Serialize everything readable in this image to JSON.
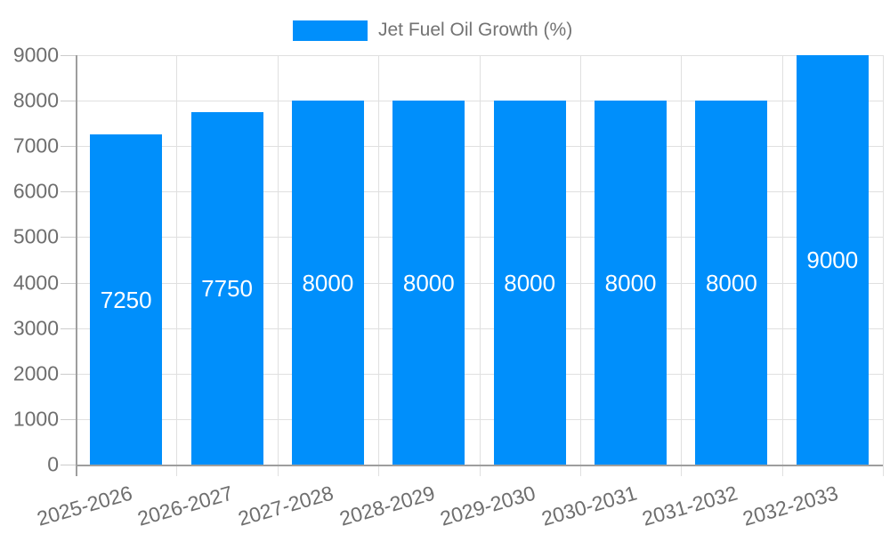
{
  "chart_data": {
    "type": "bar",
    "title": "Jet Fuel Oil Growth (%)",
    "legend": {
      "label": "Jet Fuel Oil Growth (%)",
      "position": "top-center",
      "marker": "rectangle"
    },
    "categories": [
      "2025-2026",
      "2026-2027",
      "2027-2028",
      "2028-2029",
      "2029-2030",
      "2030-2031",
      "2031-2032",
      "2032-2033"
    ],
    "values": [
      7250,
      7750,
      8000,
      8000,
      8000,
      8000,
      8000,
      9000
    ],
    "xlabel": "",
    "ylabel": "",
    "ylim": [
      0,
      9000
    ],
    "ytick_step": 1000,
    "ytick_labels": [
      "0",
      "1000",
      "2000",
      "3000",
      "4000",
      "5000",
      "6000",
      "7000",
      "8000",
      "9000"
    ],
    "grid": "horizontal-and-vertical",
    "value_labels_inside_bars": true,
    "colors": {
      "bar": "#008FFB",
      "bar_label_text": "#ffffff",
      "gridline": "#e0e0e0",
      "tick": "#cccccc",
      "axis_line": "#9e9e9e",
      "axis_label_text": "#6e6e6e",
      "legend_text": "#737373",
      "background": "#ffffff"
    }
  }
}
